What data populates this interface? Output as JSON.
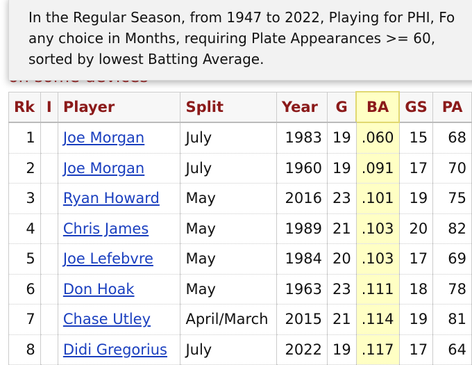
{
  "tooltip": {
    "lines": [
      "In the Regular Season, from 1947 to 2022, Playing for PHI, Fo",
      "any choice in Months, requiring Plate Appearances >= 60,",
      "sorted by lowest Batting Average."
    ]
  },
  "note": "on some devices",
  "table": {
    "headers": [
      "Rk",
      "I",
      "Player",
      "Split",
      "Year",
      "G",
      "BA",
      "GS",
      "PA"
    ],
    "rows": [
      [
        "1",
        "",
        "Joe Morgan",
        "July",
        "1983",
        "19",
        ".060",
        "15",
        "68"
      ],
      [
        "2",
        "",
        "Joe Morgan",
        "July",
        "1960",
        "19",
        ".091",
        "17",
        "70"
      ],
      [
        "3",
        "",
        "Ryan Howard",
        "May",
        "2016",
        "23",
        ".101",
        "19",
        "75"
      ],
      [
        "4",
        "",
        "Chris James",
        "May",
        "1989",
        "21",
        ".103",
        "20",
        "82"
      ],
      [
        "5",
        "",
        "Joe Lefebvre",
        "May",
        "1984",
        "20",
        ".103",
        "17",
        "69"
      ],
      [
        "6",
        "",
        "Don Hoak",
        "May",
        "1963",
        "23",
        ".111",
        "18",
        "78"
      ],
      [
        "7",
        "",
        "Chase Utley",
        "April/March",
        "2015",
        "21",
        ".114",
        "19",
        "81"
      ],
      [
        "8",
        "",
        "Didi Gregorius",
        "July",
        "2022",
        "19",
        ".117",
        "17",
        "64"
      ]
    ]
  }
}
